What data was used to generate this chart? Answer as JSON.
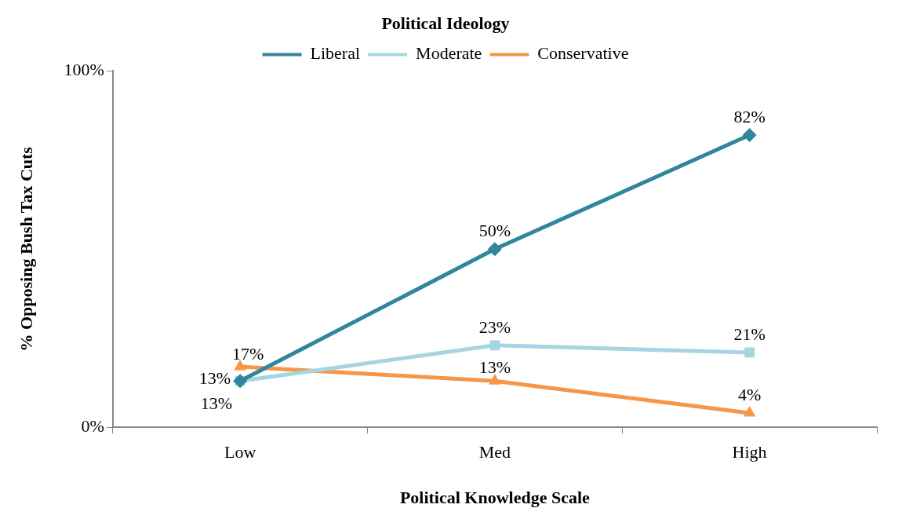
{
  "chart_data": {
    "type": "line",
    "legend_title": "Political Ideology",
    "xlabel": "Political Knowledge Scale",
    "ylabel": "% Opposing Bush Tax Cuts",
    "categories": [
      "Low",
      "Med",
      "High"
    ],
    "series": [
      {
        "name": "Liberal",
        "color": "#31859c",
        "marker": "diamond",
        "values": [
          13,
          50,
          82
        ],
        "value_labels": [
          "13%",
          "50%",
          "82%"
        ]
      },
      {
        "name": "Moderate",
        "color": "#a5d5e2",
        "marker": "square",
        "values": [
          13,
          23,
          21
        ],
        "value_labels": [
          "13%",
          "23%",
          "21%"
        ]
      },
      {
        "name": "Conservative",
        "color": "#f79646",
        "marker": "triangle",
        "values": [
          17,
          13,
          4
        ],
        "value_labels": [
          "17%",
          "13%",
          "4%"
        ]
      }
    ],
    "ylim": [
      0,
      100
    ],
    "yticks": [
      {
        "value": 0,
        "label": "0%"
      },
      {
        "value": 100,
        "label": "100%"
      }
    ],
    "grid": false,
    "legend": "top",
    "line_style": "solid"
  }
}
